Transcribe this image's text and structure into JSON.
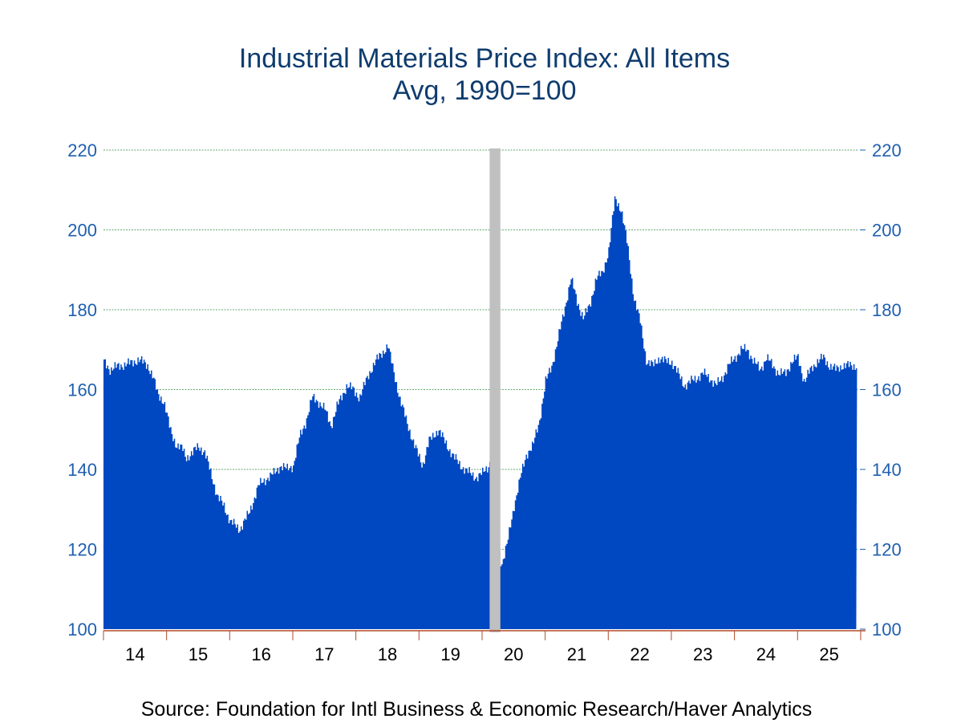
{
  "chart_data": {
    "type": "area",
    "title": "Industrial Materials Price Index: All Items",
    "subtitle": "Avg, 1990=100",
    "source": "Source:  Foundation for Intl Business & Economic Research/Haver Analytics",
    "ylim": [
      100,
      220
    ],
    "yticks": [
      100,
      120,
      140,
      160,
      180,
      200,
      220
    ],
    "ytick_labels": [
      "100",
      "120",
      "140",
      "160",
      "180",
      "200",
      "220"
    ],
    "xlim": [
      2014.0,
      2025.95
    ],
    "xtick_labels": [
      "14",
      "15",
      "16",
      "17",
      "18",
      "19",
      "20",
      "21",
      "22",
      "23",
      "24",
      "25"
    ],
    "grid": true,
    "recession": [
      2020.12,
      2020.29
    ],
    "series": [
      {
        "color": "#0047c2",
        "x": [
          2014.0,
          2014.1,
          2014.25,
          2014.4,
          2014.55,
          2014.7,
          2014.78,
          2014.85,
          2014.95,
          2015.05,
          2015.15,
          2015.25,
          2015.3,
          2015.4,
          2015.5,
          2015.6,
          2015.7,
          2015.8,
          2015.9,
          2016.0,
          2016.15,
          2016.3,
          2016.45,
          2016.6,
          2016.7,
          2016.8,
          2016.9,
          2017.0,
          2017.1,
          2017.2,
          2017.3,
          2017.4,
          2017.5,
          2017.6,
          2017.7,
          2017.85,
          2017.95,
          2018.05,
          2018.2,
          2018.3,
          2018.4,
          2018.5,
          2018.6,
          2018.7,
          2018.8,
          2018.92,
          2019.05,
          2019.15,
          2019.3,
          2019.4,
          2019.55,
          2019.65,
          2019.8,
          2019.9,
          2020.0,
          2020.1,
          2020.15,
          2020.2,
          2020.25,
          2020.3,
          2020.4,
          2020.5,
          2020.6,
          2020.7,
          2020.8,
          2020.9,
          2021.0,
          2021.1,
          2021.2,
          2021.3,
          2021.4,
          2021.5,
          2021.6,
          2021.7,
          2021.8,
          2021.9,
          2022.0,
          2022.1,
          2022.2,
          2022.3,
          2022.4,
          2022.5,
          2022.6,
          2022.7,
          2022.8,
          2022.9,
          2023.0,
          2023.1,
          2023.2,
          2023.3,
          2023.4,
          2023.5,
          2023.6,
          2023.7,
          2023.8,
          2023.9,
          2024.0,
          2024.1,
          2024.2,
          2024.3,
          2024.4,
          2024.5,
          2024.6,
          2024.7,
          2024.8,
          2024.9,
          2025.0,
          2025.1,
          2025.2,
          2025.3,
          2025.4,
          2025.5,
          2025.6,
          2025.7,
          2025.75,
          2025.85,
          2025.93
        ],
        "y": [
          167,
          165,
          166,
          166.5,
          167.5,
          166,
          163,
          159,
          157,
          150,
          146,
          145,
          143,
          144,
          146,
          144,
          139,
          133,
          131,
          127,
          125,
          129,
          136,
          138,
          139,
          141,
          140,
          141,
          148,
          152,
          158,
          157,
          155,
          151,
          156,
          161,
          160,
          158,
          164,
          167,
          169,
          171,
          164,
          157,
          152,
          146,
          141,
          147,
          150,
          147,
          143,
          141,
          139,
          138,
          139,
          141,
          144,
          141,
          121,
          116,
          122,
          131,
          138,
          144,
          146,
          152,
          162,
          166,
          173,
          180,
          188,
          182,
          178,
          181,
          188,
          189,
          195,
          208,
          205,
          196,
          183,
          177,
          167,
          166,
          168,
          167,
          167,
          164,
          161,
          162,
          163,
          164,
          163,
          161,
          163,
          166,
          168,
          170,
          170,
          167,
          165,
          168,
          166,
          164,
          164,
          167,
          168,
          162,
          165,
          167,
          168,
          166,
          165,
          166,
          166,
          166,
          166
        ]
      }
    ]
  }
}
